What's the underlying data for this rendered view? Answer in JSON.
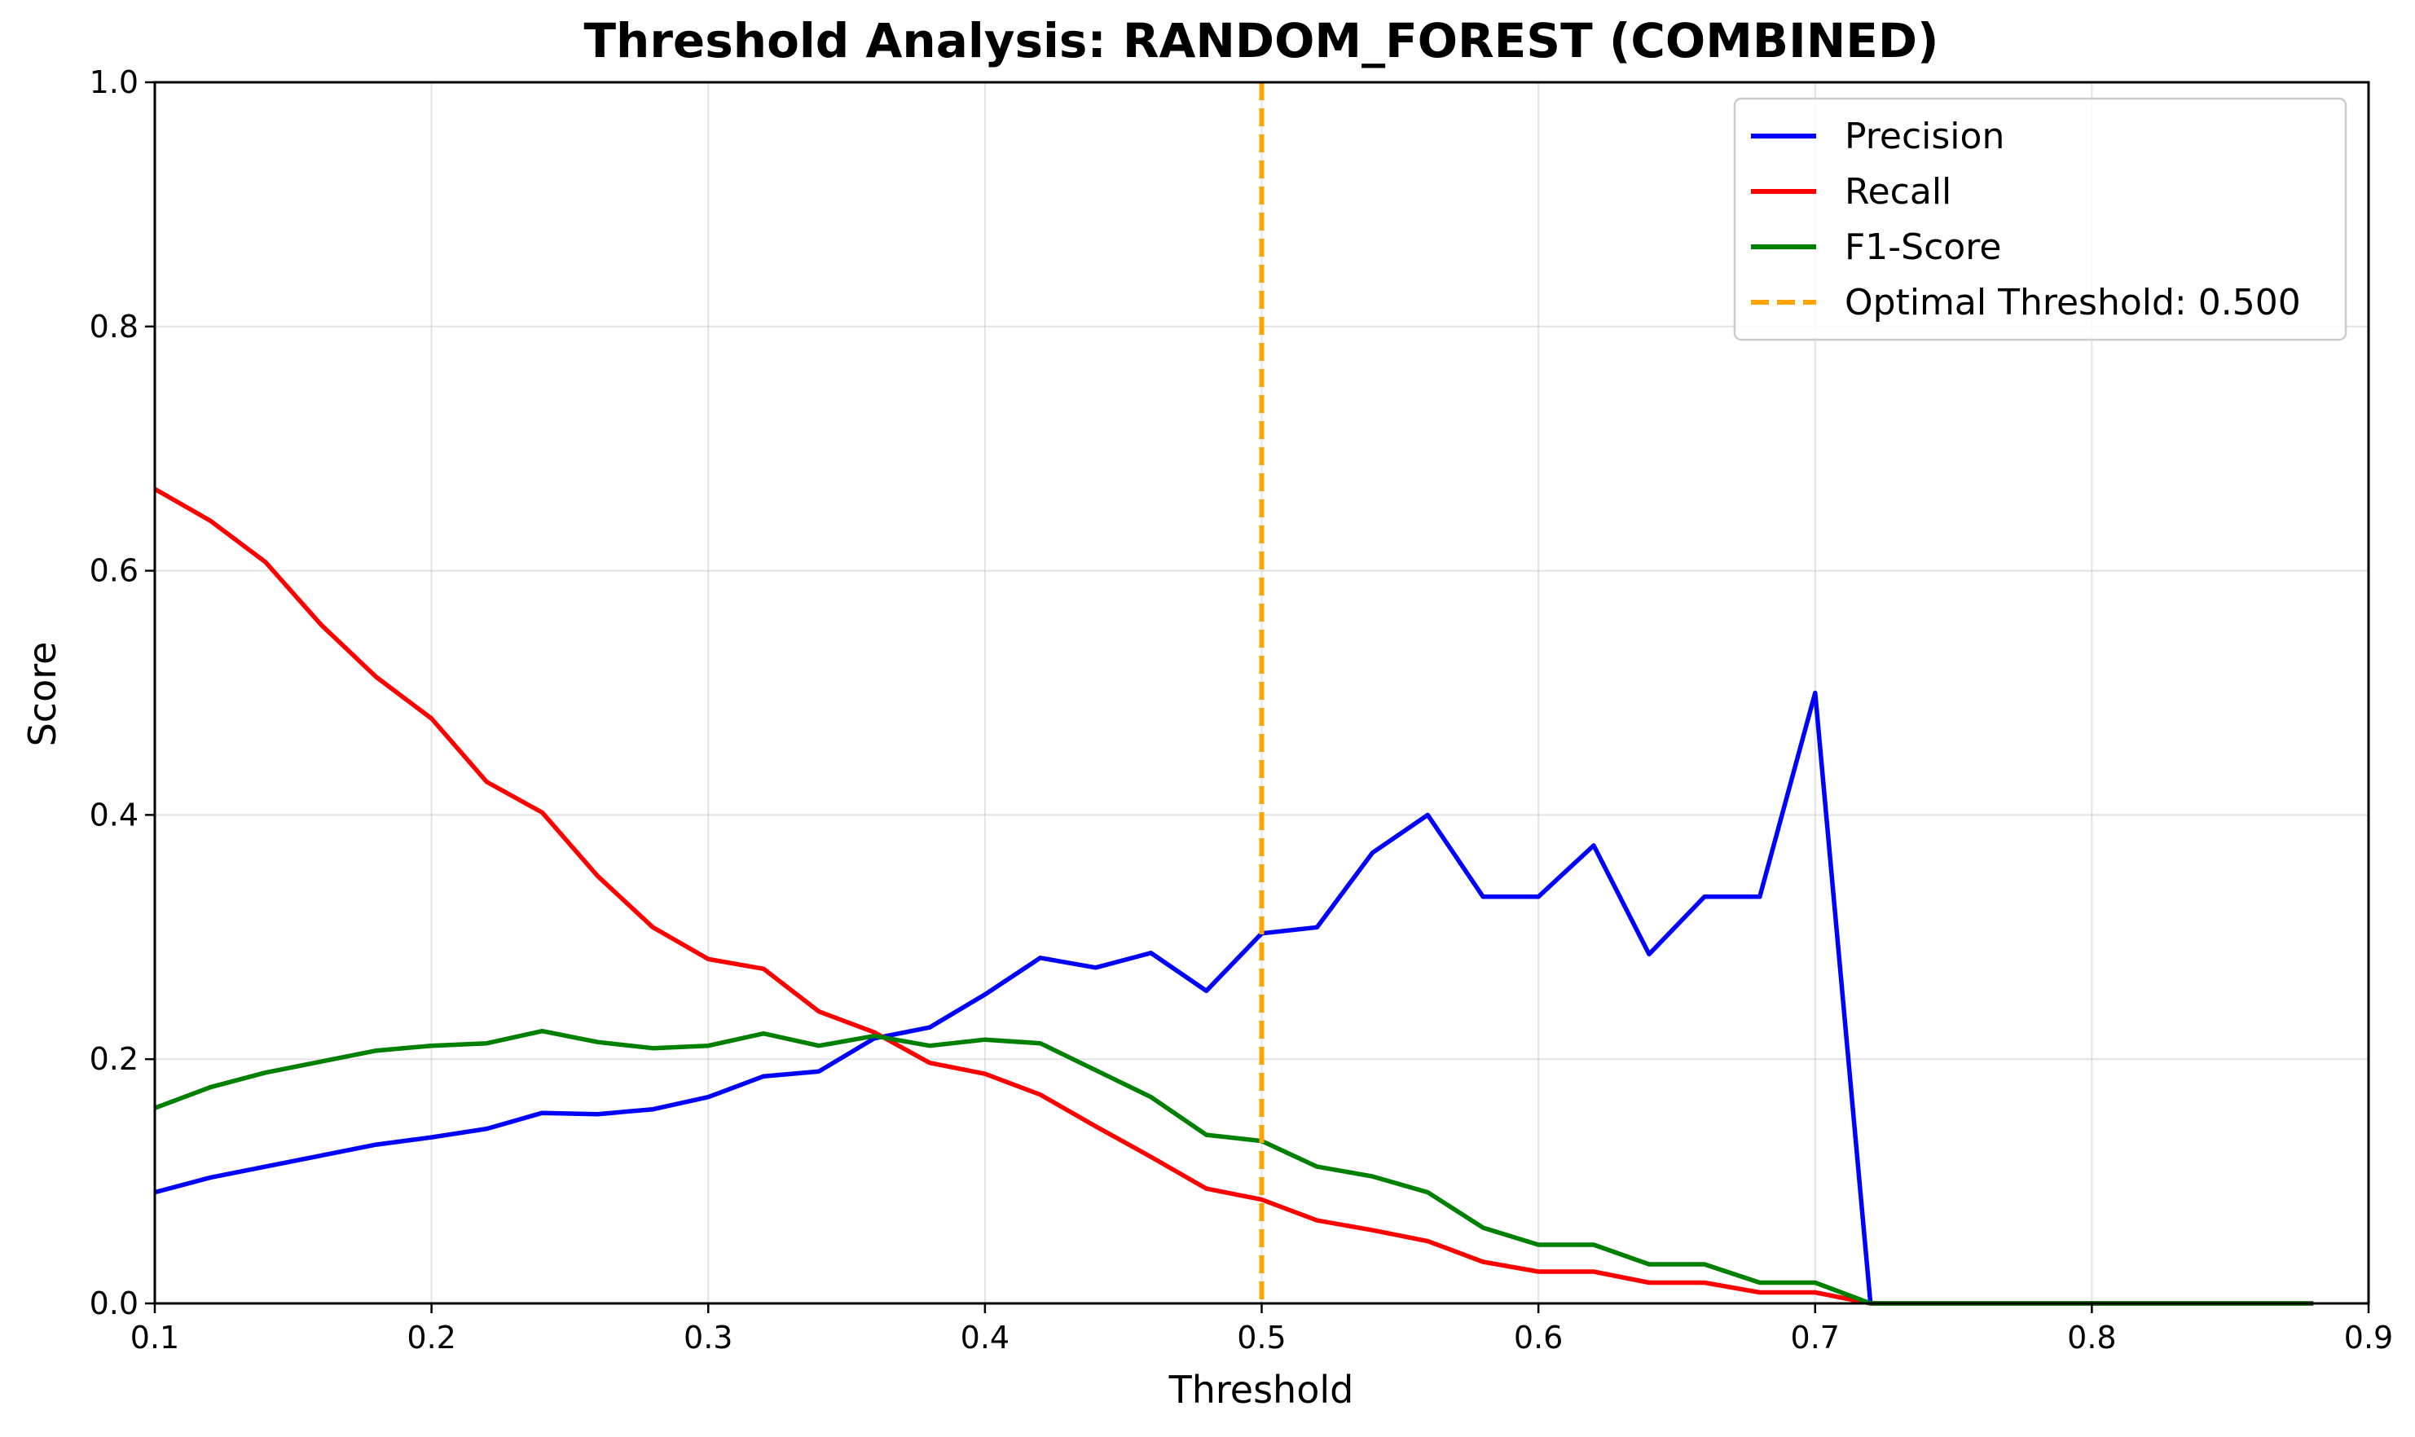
{
  "chart_data": {
    "type": "line",
    "title": "Threshold Analysis: RANDOM_FOREST (COMBINED)",
    "xlabel": "Threshold",
    "ylabel": "Score",
    "xlim": [
      0.1,
      0.9
    ],
    "ylim": [
      0.0,
      1.0
    ],
    "xticks": [
      "0.1",
      "0.2",
      "0.3",
      "0.4",
      "0.5",
      "0.6",
      "0.7",
      "0.8",
      "0.9"
    ],
    "yticks": [
      "0.0",
      "0.2",
      "0.4",
      "0.6",
      "0.8",
      "1.0"
    ],
    "grid": true,
    "legend_position": "top-right",
    "x": [
      0.1,
      0.12,
      0.14,
      0.16,
      0.18,
      0.2,
      0.22,
      0.24,
      0.26,
      0.28,
      0.3,
      0.32,
      0.34,
      0.36,
      0.38,
      0.4,
      0.42,
      0.44,
      0.46,
      0.48,
      0.5,
      0.52,
      0.54,
      0.56,
      0.58,
      0.6,
      0.62,
      0.64,
      0.66,
      0.68,
      0.7,
      0.72,
      0.74,
      0.76,
      0.78,
      0.8,
      0.82,
      0.84,
      0.86,
      0.88
    ],
    "series": [
      {
        "name": "Precision",
        "color": "#0000ff",
        "values": [
          0.091,
          0.103,
          0.112,
          0.121,
          0.13,
          0.136,
          0.143,
          0.156,
          0.155,
          0.159,
          0.169,
          0.186,
          0.19,
          0.217,
          0.226,
          0.253,
          0.283,
          0.275,
          0.287,
          0.256,
          0.303,
          0.308,
          0.369,
          0.4,
          0.333,
          0.333,
          0.375,
          0.286,
          0.333,
          0.333,
          0.5,
          0.0,
          0.0,
          0.0,
          0.0,
          0.0,
          0.0,
          0.0,
          0.0,
          0.0
        ]
      },
      {
        "name": "Recall",
        "color": "#ff0000",
        "values": [
          0.667,
          0.641,
          0.607,
          0.556,
          0.513,
          0.479,
          0.427,
          0.402,
          0.35,
          0.308,
          0.282,
          0.274,
          0.239,
          0.222,
          0.197,
          0.188,
          0.171,
          0.145,
          0.12,
          0.094,
          0.085,
          0.068,
          0.06,
          0.051,
          0.034,
          0.026,
          0.026,
          0.017,
          0.017,
          0.009,
          0.009,
          0.0,
          0.0,
          0.0,
          0.0,
          0.0,
          0.0,
          0.0,
          0.0,
          0.0
        ]
      },
      {
        "name": "F1-Score",
        "color": "#008000",
        "values": [
          0.16,
          0.177,
          0.189,
          0.198,
          0.207,
          0.211,
          0.213,
          0.223,
          0.214,
          0.209,
          0.211,
          0.221,
          0.211,
          0.219,
          0.211,
          0.216,
          0.213,
          0.191,
          0.169,
          0.138,
          0.133,
          0.112,
          0.104,
          0.091,
          0.062,
          0.048,
          0.048,
          0.032,
          0.032,
          0.017,
          0.017,
          0.0,
          0.0,
          0.0,
          0.0,
          0.0,
          0.0,
          0.0,
          0.0,
          0.0
        ]
      }
    ],
    "reference_line": {
      "name": "Optimal Threshold: 0.500",
      "x": 0.5,
      "color": "#ffa500",
      "style": "dashed"
    }
  }
}
